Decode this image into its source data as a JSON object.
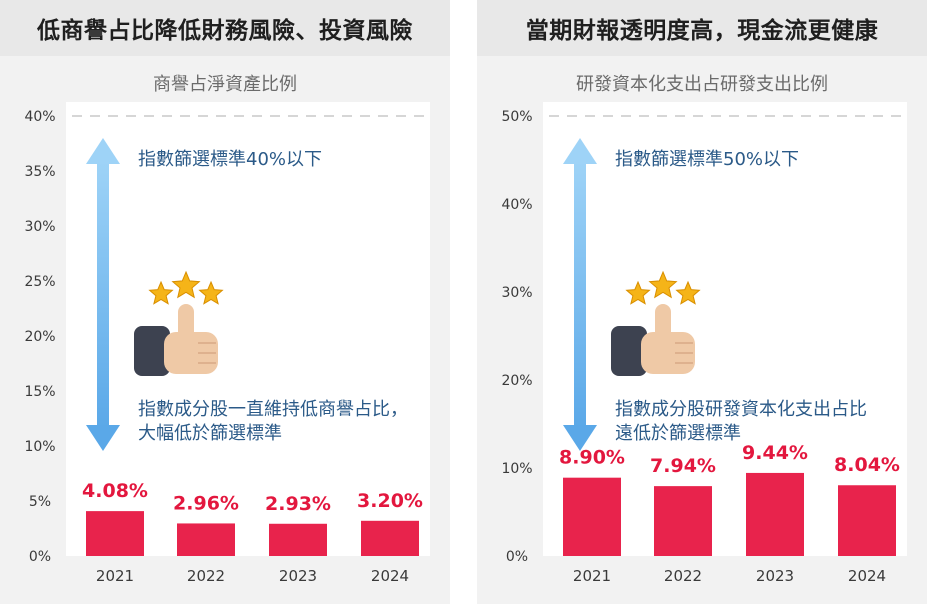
{
  "panels": [
    {
      "header": "低商譽占比降低財務風險、投資風險",
      "chart_data": {
        "type": "bar",
        "title": "商譽占淨資產比例",
        "categories": [
          "2021",
          "2022",
          "2023",
          "2024"
        ],
        "values": [
          4.08,
          2.96,
          2.93,
          3.2
        ],
        "value_labels": [
          "4.08%",
          "2.96%",
          "2.93%",
          "3.20%"
        ],
        "ylim": [
          0,
          40
        ],
        "yticks": [
          0,
          5,
          10,
          15,
          20,
          25,
          30,
          35,
          40
        ],
        "ytick_labels": [
          "0%",
          "5%",
          "10%",
          "15%",
          "20%",
          "25%",
          "30%",
          "35%",
          "40%"
        ],
        "threshold": 40,
        "annotation_top": "指數篩選標準40%以下",
        "annotation_bottom": [
          "指數成分股一直維持低商譽占比，",
          "大幅低於篩選標準"
        ],
        "bar_color": "#e8234c",
        "grid": false
      }
    },
    {
      "header": "當期財報透明度高，現金流更健康",
      "chart_data": {
        "type": "bar",
        "title": "研發資本化支出占研發支出比例",
        "categories": [
          "2021",
          "2022",
          "2023",
          "2024"
        ],
        "values": [
          8.9,
          7.94,
          9.44,
          8.04
        ],
        "value_labels": [
          "8.90%",
          "7.94%",
          "9.44%",
          "8.04%"
        ],
        "ylim": [
          0,
          50
        ],
        "yticks": [
          0,
          10,
          20,
          30,
          40,
          50
        ],
        "ytick_labels": [
          "0%",
          "10%",
          "20%",
          "30%",
          "40%",
          "50%"
        ],
        "threshold": 50,
        "annotation_top": "指數篩選標準50%以下",
        "annotation_bottom": [
          "指數成分股研發資本化支出占比",
          "遠低於篩選標準"
        ],
        "bar_color": "#e8234c",
        "grid": false
      }
    }
  ],
  "icons": {
    "rating": "thumbs-up-three-stars-icon",
    "range": "double-arrow-icon"
  }
}
